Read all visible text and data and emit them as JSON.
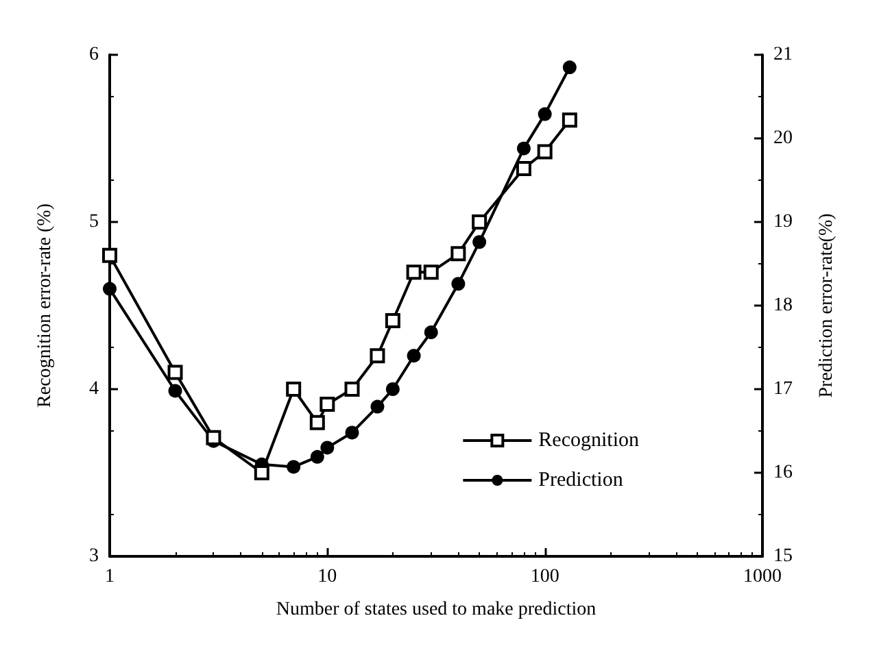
{
  "chart_data": {
    "type": "line",
    "xlabel": "Number of states used to make prediction",
    "ylabel": "Recognition error-rate (%)",
    "y2label": "Prediction error-rate(%)",
    "x": [
      1,
      2,
      3,
      5,
      7,
      9,
      10,
      13,
      17,
      20,
      25,
      30,
      40,
      50,
      80,
      100,
      130
    ],
    "series": [
      {
        "name": "Recognition",
        "color": "#000000",
        "marker": "square",
        "values": [
          4.8,
          4.1,
          3.71,
          3.5,
          4.0,
          3.8,
          3.91,
          4.0,
          4.2,
          4.41,
          4.7,
          4.7,
          4.81,
          5.0,
          5.32,
          5.42,
          5.61
        ]
      },
      {
        "name": "Prediction",
        "color": "#000000",
        "marker": "circle",
        "axis": "y2",
        "values": [
          18.2,
          16.98,
          16.38,
          16.1,
          16.07,
          16.19,
          16.3,
          16.48,
          16.79,
          17.0,
          17.4,
          17.68,
          18.26,
          18.76,
          19.88,
          20.29,
          20.85
        ]
      }
    ],
    "log": "x",
    "xlim": [
      1,
      1000
    ],
    "xticks": [
      1,
      10,
      100,
      1000
    ],
    "ylim": [
      3,
      6
    ],
    "yticks": [
      3,
      4,
      5,
      6
    ],
    "y2lim": [
      15,
      21
    ],
    "y2ticks": [
      15,
      16,
      17,
      18,
      19,
      20,
      21
    ],
    "grid": false,
    "legend": "bottom right",
    "line_style": "solid"
  }
}
